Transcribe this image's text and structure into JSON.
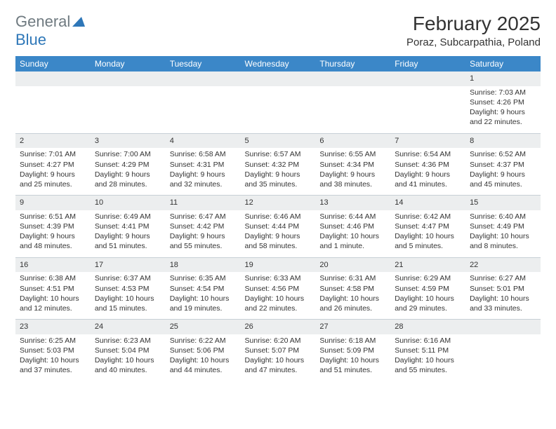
{
  "brand": {
    "part1": "General",
    "part2": "Blue"
  },
  "title": "February 2025",
  "location": "Poraz, Subcarpathia, Poland",
  "colors": {
    "header_bg": "#3b87c8",
    "header_text": "#ffffff",
    "daynum_bg": "#eceeef",
    "border": "#c7d0d6",
    "brand_gray": "#6f7a80",
    "brand_blue": "#2e77b8"
  },
  "weekdays": [
    "Sunday",
    "Monday",
    "Tuesday",
    "Wednesday",
    "Thursday",
    "Friday",
    "Saturday"
  ],
  "weeks": [
    {
      "nums": [
        "",
        "",
        "",
        "",
        "",
        "",
        "1"
      ],
      "details": [
        "",
        "",
        "",
        "",
        "",
        "",
        "Sunrise: 7:03 AM\nSunset: 4:26 PM\nDaylight: 9 hours and 22 minutes."
      ]
    },
    {
      "nums": [
        "2",
        "3",
        "4",
        "5",
        "6",
        "7",
        "8"
      ],
      "details": [
        "Sunrise: 7:01 AM\nSunset: 4:27 PM\nDaylight: 9 hours and 25 minutes.",
        "Sunrise: 7:00 AM\nSunset: 4:29 PM\nDaylight: 9 hours and 28 minutes.",
        "Sunrise: 6:58 AM\nSunset: 4:31 PM\nDaylight: 9 hours and 32 minutes.",
        "Sunrise: 6:57 AM\nSunset: 4:32 PM\nDaylight: 9 hours and 35 minutes.",
        "Sunrise: 6:55 AM\nSunset: 4:34 PM\nDaylight: 9 hours and 38 minutes.",
        "Sunrise: 6:54 AM\nSunset: 4:36 PM\nDaylight: 9 hours and 41 minutes.",
        "Sunrise: 6:52 AM\nSunset: 4:37 PM\nDaylight: 9 hours and 45 minutes."
      ]
    },
    {
      "nums": [
        "9",
        "10",
        "11",
        "12",
        "13",
        "14",
        "15"
      ],
      "details": [
        "Sunrise: 6:51 AM\nSunset: 4:39 PM\nDaylight: 9 hours and 48 minutes.",
        "Sunrise: 6:49 AM\nSunset: 4:41 PM\nDaylight: 9 hours and 51 minutes.",
        "Sunrise: 6:47 AM\nSunset: 4:42 PM\nDaylight: 9 hours and 55 minutes.",
        "Sunrise: 6:46 AM\nSunset: 4:44 PM\nDaylight: 9 hours and 58 minutes.",
        "Sunrise: 6:44 AM\nSunset: 4:46 PM\nDaylight: 10 hours and 1 minute.",
        "Sunrise: 6:42 AM\nSunset: 4:47 PM\nDaylight: 10 hours and 5 minutes.",
        "Sunrise: 6:40 AM\nSunset: 4:49 PM\nDaylight: 10 hours and 8 minutes."
      ]
    },
    {
      "nums": [
        "16",
        "17",
        "18",
        "19",
        "20",
        "21",
        "22"
      ],
      "details": [
        "Sunrise: 6:38 AM\nSunset: 4:51 PM\nDaylight: 10 hours and 12 minutes.",
        "Sunrise: 6:37 AM\nSunset: 4:53 PM\nDaylight: 10 hours and 15 minutes.",
        "Sunrise: 6:35 AM\nSunset: 4:54 PM\nDaylight: 10 hours and 19 minutes.",
        "Sunrise: 6:33 AM\nSunset: 4:56 PM\nDaylight: 10 hours and 22 minutes.",
        "Sunrise: 6:31 AM\nSunset: 4:58 PM\nDaylight: 10 hours and 26 minutes.",
        "Sunrise: 6:29 AM\nSunset: 4:59 PM\nDaylight: 10 hours and 29 minutes.",
        "Sunrise: 6:27 AM\nSunset: 5:01 PM\nDaylight: 10 hours and 33 minutes."
      ]
    },
    {
      "nums": [
        "23",
        "24",
        "25",
        "26",
        "27",
        "28",
        ""
      ],
      "details": [
        "Sunrise: 6:25 AM\nSunset: 5:03 PM\nDaylight: 10 hours and 37 minutes.",
        "Sunrise: 6:23 AM\nSunset: 5:04 PM\nDaylight: 10 hours and 40 minutes.",
        "Sunrise: 6:22 AM\nSunset: 5:06 PM\nDaylight: 10 hours and 44 minutes.",
        "Sunrise: 6:20 AM\nSunset: 5:07 PM\nDaylight: 10 hours and 47 minutes.",
        "Sunrise: 6:18 AM\nSunset: 5:09 PM\nDaylight: 10 hours and 51 minutes.",
        "Sunrise: 6:16 AM\nSunset: 5:11 PM\nDaylight: 10 hours and 55 minutes.",
        ""
      ]
    }
  ]
}
